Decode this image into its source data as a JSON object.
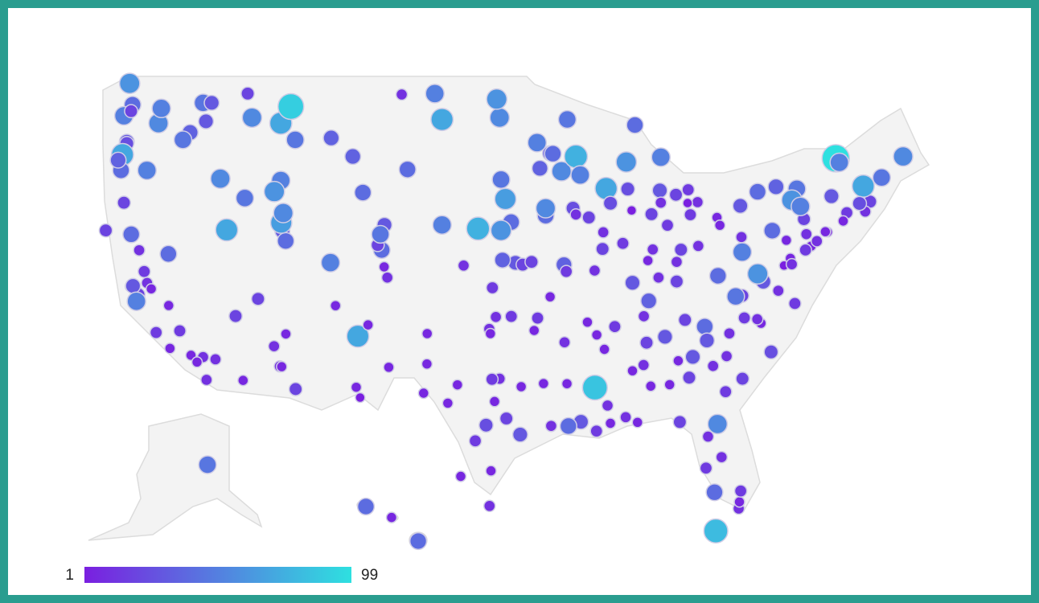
{
  "chart_data": {
    "type": "bubble-map",
    "color_range": [
      1,
      99
    ],
    "colors": [
      "#7a1fe0",
      "#2ee0e0"
    ],
    "points": [
      [
        -122.3,
        47.6,
        40
      ],
      [
        -122.5,
        48.75,
        60
      ],
      [
        -122.9,
        47.0,
        50
      ],
      [
        -122.4,
        47.25,
        20
      ],
      [
        -122.7,
        45.6,
        30
      ],
      [
        -117.4,
        47.7,
        45
      ],
      [
        -120.5,
        46.6,
        55
      ],
      [
        -120.3,
        47.4,
        50
      ],
      [
        -117.2,
        46.7,
        30
      ],
      [
        -118.3,
        46.1,
        35
      ],
      [
        -122.7,
        45.5,
        25
      ],
      [
        -123.0,
        44.9,
        70
      ],
      [
        -123.1,
        44.05,
        40
      ],
      [
        -121.3,
        44.05,
        50
      ],
      [
        -122.9,
        42.3,
        20
      ],
      [
        -123.3,
        44.6,
        35
      ],
      [
        -118.8,
        45.7,
        45
      ],
      [
        -116.2,
        43.6,
        55
      ],
      [
        -116.8,
        47.7,
        30
      ],
      [
        -112.0,
        43.5,
        50
      ],
      [
        -112.45,
        42.9,
        60
      ],
      [
        -114.5,
        42.55,
        45
      ],
      [
        -114.0,
        46.9,
        55
      ],
      [
        -112.0,
        46.6,
        70
      ],
      [
        -111.3,
        47.5,
        90
      ],
      [
        -111.0,
        45.7,
        45
      ],
      [
        -108.5,
        45.8,
        35
      ],
      [
        -114.3,
        48.2,
        20
      ],
      [
        -104.8,
        41.1,
        30
      ],
      [
        -106.3,
        42.85,
        40
      ],
      [
        -107.0,
        44.8,
        35
      ],
      [
        -96.8,
        46.9,
        55
      ],
      [
        -100.8,
        46.8,
        70
      ],
      [
        -101.3,
        48.2,
        50
      ],
      [
        -97.0,
        47.9,
        60
      ],
      [
        -103.6,
        48.15,
        10
      ],
      [
        -96.7,
        43.55,
        45
      ],
      [
        -103.2,
        44.1,
        40
      ],
      [
        -96.0,
        41.25,
        40
      ],
      [
        -96.7,
        40.8,
        60
      ],
      [
        -98.3,
        40.9,
        75
      ],
      [
        -100.8,
        41.1,
        50
      ],
      [
        -97.3,
        37.7,
        15
      ],
      [
        -95.7,
        39.05,
        30
      ],
      [
        -96.6,
        39.2,
        35
      ],
      [
        -95.2,
        38.95,
        20
      ],
      [
        -99.3,
        38.9,
        10
      ],
      [
        -93.3,
        44.97,
        30
      ],
      [
        -93.1,
        44.95,
        40
      ],
      [
        -92.1,
        46.8,
        45
      ],
      [
        -92.5,
        44.0,
        55
      ],
      [
        -94.2,
        45.55,
        50
      ],
      [
        -94.0,
        44.16,
        35
      ],
      [
        -93.6,
        41.6,
        40
      ],
      [
        -91.7,
        42.0,
        25
      ],
      [
        -91.5,
        41.66,
        10
      ],
      [
        -93.6,
        42.0,
        55
      ],
      [
        -96.4,
        42.5,
        65
      ],
      [
        -90.6,
        41.5,
        20
      ],
      [
        -89.4,
        43.07,
        70
      ],
      [
        -87.9,
        43.04,
        25
      ],
      [
        -88.0,
        44.5,
        60
      ],
      [
        -91.5,
        44.8,
        75
      ],
      [
        -91.2,
        43.8,
        50
      ],
      [
        -83.05,
        42.33,
        10
      ],
      [
        -84.55,
        42.73,
        20
      ],
      [
        -85.67,
        42.96,
        30
      ],
      [
        -83.74,
        42.28,
        1
      ],
      [
        -85.6,
        44.76,
        50
      ],
      [
        -87.4,
        46.5,
        40
      ],
      [
        -83.7,
        43.0,
        15
      ],
      [
        -85.6,
        42.3,
        10
      ],
      [
        -87.63,
        41.88,
        1
      ],
      [
        -89.65,
        39.8,
        20
      ],
      [
        -89.6,
        40.7,
        10
      ],
      [
        -88.24,
        40.1,
        15
      ],
      [
        -89.1,
        42.27,
        25
      ],
      [
        -86.16,
        39.77,
        10
      ],
      [
        -85.14,
        41.08,
        15
      ],
      [
        -86.5,
        39.17,
        5
      ],
      [
        -86.25,
        41.68,
        20
      ],
      [
        -87.57,
        37.97,
        30
      ],
      [
        -83.0,
        39.96,
        10
      ],
      [
        -81.7,
        41.5,
        5
      ],
      [
        -84.5,
        39.1,
        10
      ],
      [
        -83.55,
        41.65,
        15
      ],
      [
        -81.5,
        41.08,
        5
      ],
      [
        -84.2,
        39.76,
        20
      ],
      [
        -75.16,
        39.95,
        5
      ],
      [
        -80.0,
        40.44,
        10
      ],
      [
        -76.88,
        40.27,
        5
      ],
      [
        -77.86,
        40.79,
        40
      ],
      [
        -80.08,
        42.13,
        30
      ],
      [
        -75.66,
        41.41,
        20
      ],
      [
        -75.49,
        40.6,
        10
      ],
      [
        -74.0,
        40.71,
        1
      ],
      [
        -73.75,
        42.65,
        30
      ],
      [
        -78.88,
        42.89,
        40
      ],
      [
        -77.6,
        43.16,
        35
      ],
      [
        -76.15,
        43.05,
        45
      ],
      [
        -76.5,
        42.44,
        60
      ],
      [
        -73.45,
        44.7,
        99
      ],
      [
        -75.9,
        42.1,
        50
      ],
      [
        -71.06,
        42.36,
        20
      ],
      [
        -71.4,
        41.82,
        10
      ],
      [
        -72.68,
        41.76,
        15
      ],
      [
        -72.93,
        41.31,
        5
      ],
      [
        -73.2,
        44.48,
        50
      ],
      [
        -70.26,
        43.66,
        45
      ],
      [
        -68.77,
        44.8,
        55
      ],
      [
        -71.54,
        43.2,
        70
      ],
      [
        -71.8,
        42.26,
        25
      ],
      [
        -74.17,
        40.73,
        5
      ],
      [
        -74.76,
        40.22,
        10
      ],
      [
        -76.6,
        39.29,
        5
      ],
      [
        -77.04,
        38.9,
        1
      ],
      [
        -75.55,
        39.74,
        15
      ],
      [
        -76.5,
        38.97,
        10
      ],
      [
        -77.44,
        37.54,
        10
      ],
      [
        -76.29,
        36.85,
        15
      ],
      [
        -78.48,
        38.03,
        30
      ],
      [
        -79.94,
        37.27,
        20
      ],
      [
        -80.4,
        37.23,
        45
      ],
      [
        -78.87,
        38.45,
        60
      ],
      [
        -81.63,
        38.35,
        40
      ],
      [
        -79.95,
        39.63,
        50
      ],
      [
        -85.76,
        38.25,
        10
      ],
      [
        -84.5,
        38.04,
        20
      ],
      [
        -86.44,
        36.99,
        35
      ],
      [
        -86.78,
        36.16,
        10
      ],
      [
        -90.05,
        35.15,
        5
      ],
      [
        -83.92,
        35.96,
        20
      ],
      [
        -85.31,
        35.05,
        30
      ],
      [
        -88.8,
        35.6,
        15
      ],
      [
        -80.84,
        35.23,
        10
      ],
      [
        -78.64,
        35.78,
        5
      ],
      [
        -79.8,
        36.07,
        15
      ],
      [
        -82.55,
        35.6,
        40
      ],
      [
        -77.94,
        34.23,
        25
      ],
      [
        -78.9,
        36.0,
        10
      ],
      [
        -81.03,
        34.0,
        10
      ],
      [
        -79.93,
        32.78,
        20
      ],
      [
        -82.4,
        34.85,
        30
      ],
      [
        -84.39,
        33.75,
        5
      ],
      [
        -81.1,
        32.08,
        15
      ],
      [
        -81.97,
        33.47,
        10
      ],
      [
        -83.63,
        32.84,
        20
      ],
      [
        -83.38,
        33.96,
        30
      ],
      [
        -84.99,
        32.46,
        5
      ],
      [
        -80.19,
        25.76,
        10
      ],
      [
        -82.46,
        27.95,
        15
      ],
      [
        -81.38,
        28.54,
        10
      ],
      [
        -81.66,
        30.33,
        55
      ],
      [
        -84.28,
        30.44,
        20
      ],
      [
        -82.32,
        29.65,
        10
      ],
      [
        -80.14,
        26.12,
        5
      ],
      [
        -80.05,
        26.71,
        15
      ],
      [
        -81.87,
        26.64,
        40
      ],
      [
        -81.78,
        24.55,
        80
      ],
      [
        -87.22,
        30.42,
        5
      ],
      [
        -86.8,
        33.52,
        10
      ],
      [
        -86.3,
        32.38,
        5
      ],
      [
        -86.59,
        34.73,
        20
      ],
      [
        -88.04,
        30.7,
        10
      ],
      [
        -87.57,
        33.21,
        5
      ],
      [
        -90.18,
        32.3,
        85
      ],
      [
        -89.3,
        31.33,
        10
      ],
      [
        -89.52,
        34.37,
        5
      ],
      [
        -89.1,
        30.37,
        5
      ],
      [
        -90.07,
        29.95,
        15
      ],
      [
        -91.15,
        30.45,
        30
      ],
      [
        -92.02,
        30.22,
        40
      ],
      [
        -93.75,
        32.52,
        5
      ],
      [
        -92.12,
        32.51,
        5
      ],
      [
        -93.22,
        30.23,
        10
      ],
      [
        -92.29,
        34.75,
        10
      ],
      [
        -94.16,
        36.06,
        15
      ],
      [
        -90.7,
        35.84,
        5
      ],
      [
        -94.4,
        35.39,
        5
      ],
      [
        -90.2,
        38.63,
        10
      ],
      [
        -94.58,
        39.1,
        20
      ],
      [
        -92.33,
        38.95,
        35
      ],
      [
        -93.29,
        37.21,
        5
      ],
      [
        -92.17,
        38.58,
        15
      ],
      [
        -97.52,
        35.47,
        10
      ],
      [
        -95.99,
        36.15,
        15
      ],
      [
        -97.44,
        35.22,
        5
      ],
      [
        -97.06,
        36.12,
        10
      ],
      [
        -96.8,
        32.78,
        10
      ],
      [
        -97.33,
        32.75,
        15
      ],
      [
        -95.37,
        29.76,
        30
      ],
      [
        -97.74,
        30.27,
        25
      ],
      [
        -98.49,
        29.42,
        15
      ],
      [
        -106.49,
        31.76,
        1
      ],
      [
        -101.85,
        33.58,
        5
      ],
      [
        -101.83,
        35.22,
        5
      ],
      [
        -97.4,
        27.8,
        5
      ],
      [
        -97.5,
        25.9,
        10
      ],
      [
        -97.15,
        31.55,
        5
      ],
      [
        -96.33,
        30.63,
        20
      ],
      [
        -102.08,
        32.0,
        5
      ],
      [
        -99.73,
        32.45,
        5
      ],
      [
        -95.3,
        32.35,
        5
      ],
      [
        -99.5,
        27.5,
        5
      ],
      [
        -100.4,
        31.46,
        5
      ],
      [
        -106.65,
        35.08,
        70
      ],
      [
        -105.94,
        35.69,
        5
      ],
      [
        -106.76,
        32.32,
        5
      ],
      [
        -104.5,
        33.4,
        5
      ],
      [
        -108.2,
        36.73,
        5
      ],
      [
        -104.99,
        39.74,
        40
      ],
      [
        -105.27,
        40.01,
        20
      ],
      [
        -104.82,
        38.83,
        5
      ],
      [
        -105.08,
        40.59,
        45
      ],
      [
        -104.6,
        38.25,
        10
      ],
      [
        -108.55,
        39.06,
        50
      ],
      [
        -111.89,
        40.76,
        30
      ],
      [
        -111.66,
        40.23,
        40
      ],
      [
        -111.97,
        41.22,
        65
      ],
      [
        -111.83,
        41.74,
        55
      ],
      [
        -113.58,
        37.1,
        20
      ],
      [
        -112.07,
        33.45,
        10
      ],
      [
        -110.97,
        32.22,
        20
      ],
      [
        -111.65,
        35.2,
        5
      ],
      [
        -111.94,
        33.43,
        5
      ],
      [
        -114.62,
        32.69,
        5
      ],
      [
        -112.47,
        34.54,
        10
      ],
      [
        -115.14,
        36.17,
        20
      ],
      [
        -119.81,
        39.53,
        40
      ],
      [
        -115.76,
        40.83,
        70
      ],
      [
        -118.24,
        34.05,
        5
      ],
      [
        -117.16,
        32.72,
        10
      ],
      [
        -122.42,
        37.77,
        10
      ],
      [
        -121.89,
        37.34,
        20
      ],
      [
        -121.49,
        38.58,
        15
      ],
      [
        -119.79,
        36.74,
        5
      ],
      [
        -122.27,
        37.8,
        30
      ],
      [
        -119.7,
        34.42,
        5
      ],
      [
        -117.4,
        33.95,
        10
      ],
      [
        -119.02,
        35.37,
        15
      ],
      [
        -122.39,
        40.59,
        40
      ],
      [
        -124.16,
        40.8,
        20
      ],
      [
        -121.84,
        39.73,
        10
      ],
      [
        -122.03,
        36.97,
        50
      ],
      [
        -117.82,
        33.68,
        5
      ],
      [
        -116.54,
        33.83,
        10
      ],
      [
        -120.66,
        35.28,
        15
      ],
      [
        -121.29,
        37.96,
        10
      ],
      [
        -121.0,
        37.64,
        5
      ],
      [
        -149.9,
        61.2,
        45
      ],
      [
        -157.86,
        21.31,
        40
      ],
      [
        -156.5,
        20.8,
        5
      ],
      [
        -155.09,
        19.7,
        40
      ]
    ]
  }
}
